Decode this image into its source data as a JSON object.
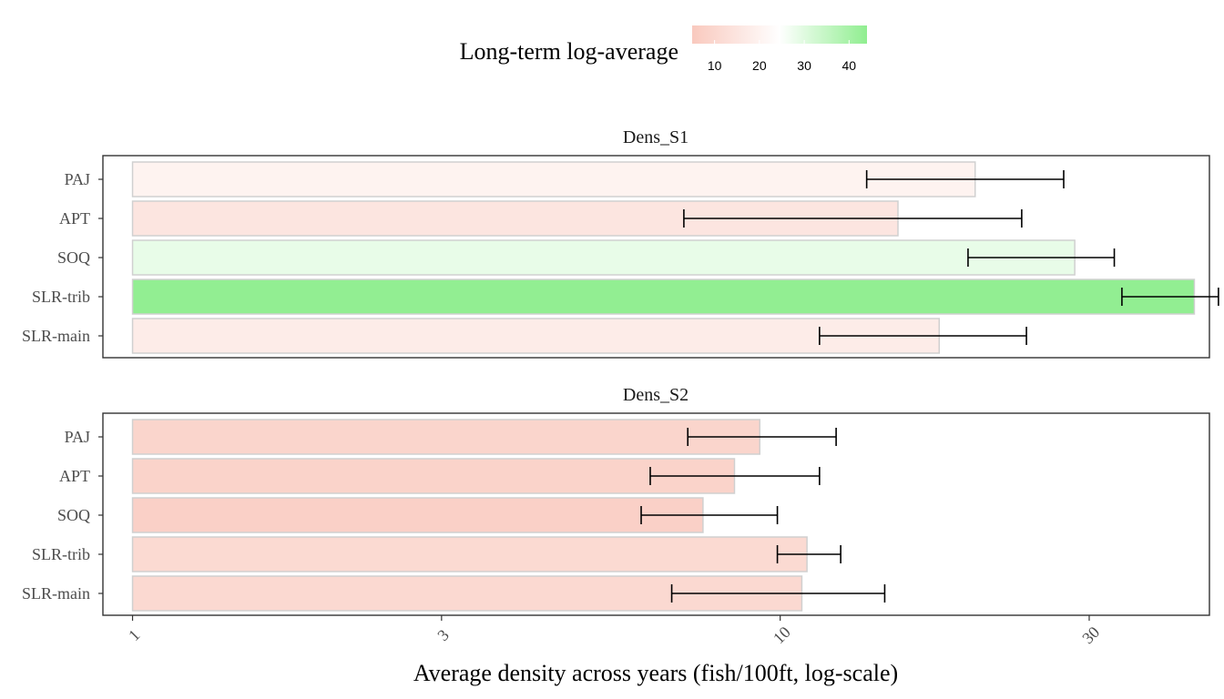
{
  "chart_data": {
    "type": "bar",
    "orientation": "horizontal",
    "x_scale": "log",
    "xlabel": "Average density across years (fish/100ft, log-scale)",
    "xticks": [
      1,
      3,
      10,
      30
    ],
    "xtick_labels": [
      "1",
      "3",
      "10",
      "30"
    ],
    "xlim": [
      0.9,
      46
    ],
    "legend": {
      "title": "Long-term log-average",
      "ticks": [
        10,
        20,
        30,
        40
      ],
      "tick_labels": [
        "10",
        "20",
        "30",
        "40"
      ],
      "range": [
        5,
        44
      ],
      "low_color": "#f9c9be",
      "mid_color": "#ffffff",
      "high_color": "#90ee90",
      "placement": "top"
    },
    "categories": [
      "PAJ",
      "APT",
      "SOQ",
      "SLR-trib",
      "SLR-main"
    ],
    "panels": [
      {
        "title": "Dens_S1",
        "values": [
          20,
          15.2,
          28.5,
          43.6,
          17.6
        ],
        "error_low": [
          13.6,
          7.1,
          19.5,
          33.7,
          11.5
        ],
        "error_high": [
          27.4,
          23.6,
          32.8,
          47.5,
          24.0
        ]
      },
      {
        "title": "Dens_S2",
        "values": [
          9.3,
          8.5,
          7.6,
          11.0,
          10.8
        ],
        "error_low": [
          7.2,
          6.3,
          6.1,
          9.9,
          6.8
        ],
        "error_high": [
          12.2,
          11.5,
          9.9,
          12.4,
          14.5
        ]
      }
    ],
    "grid": false
  }
}
